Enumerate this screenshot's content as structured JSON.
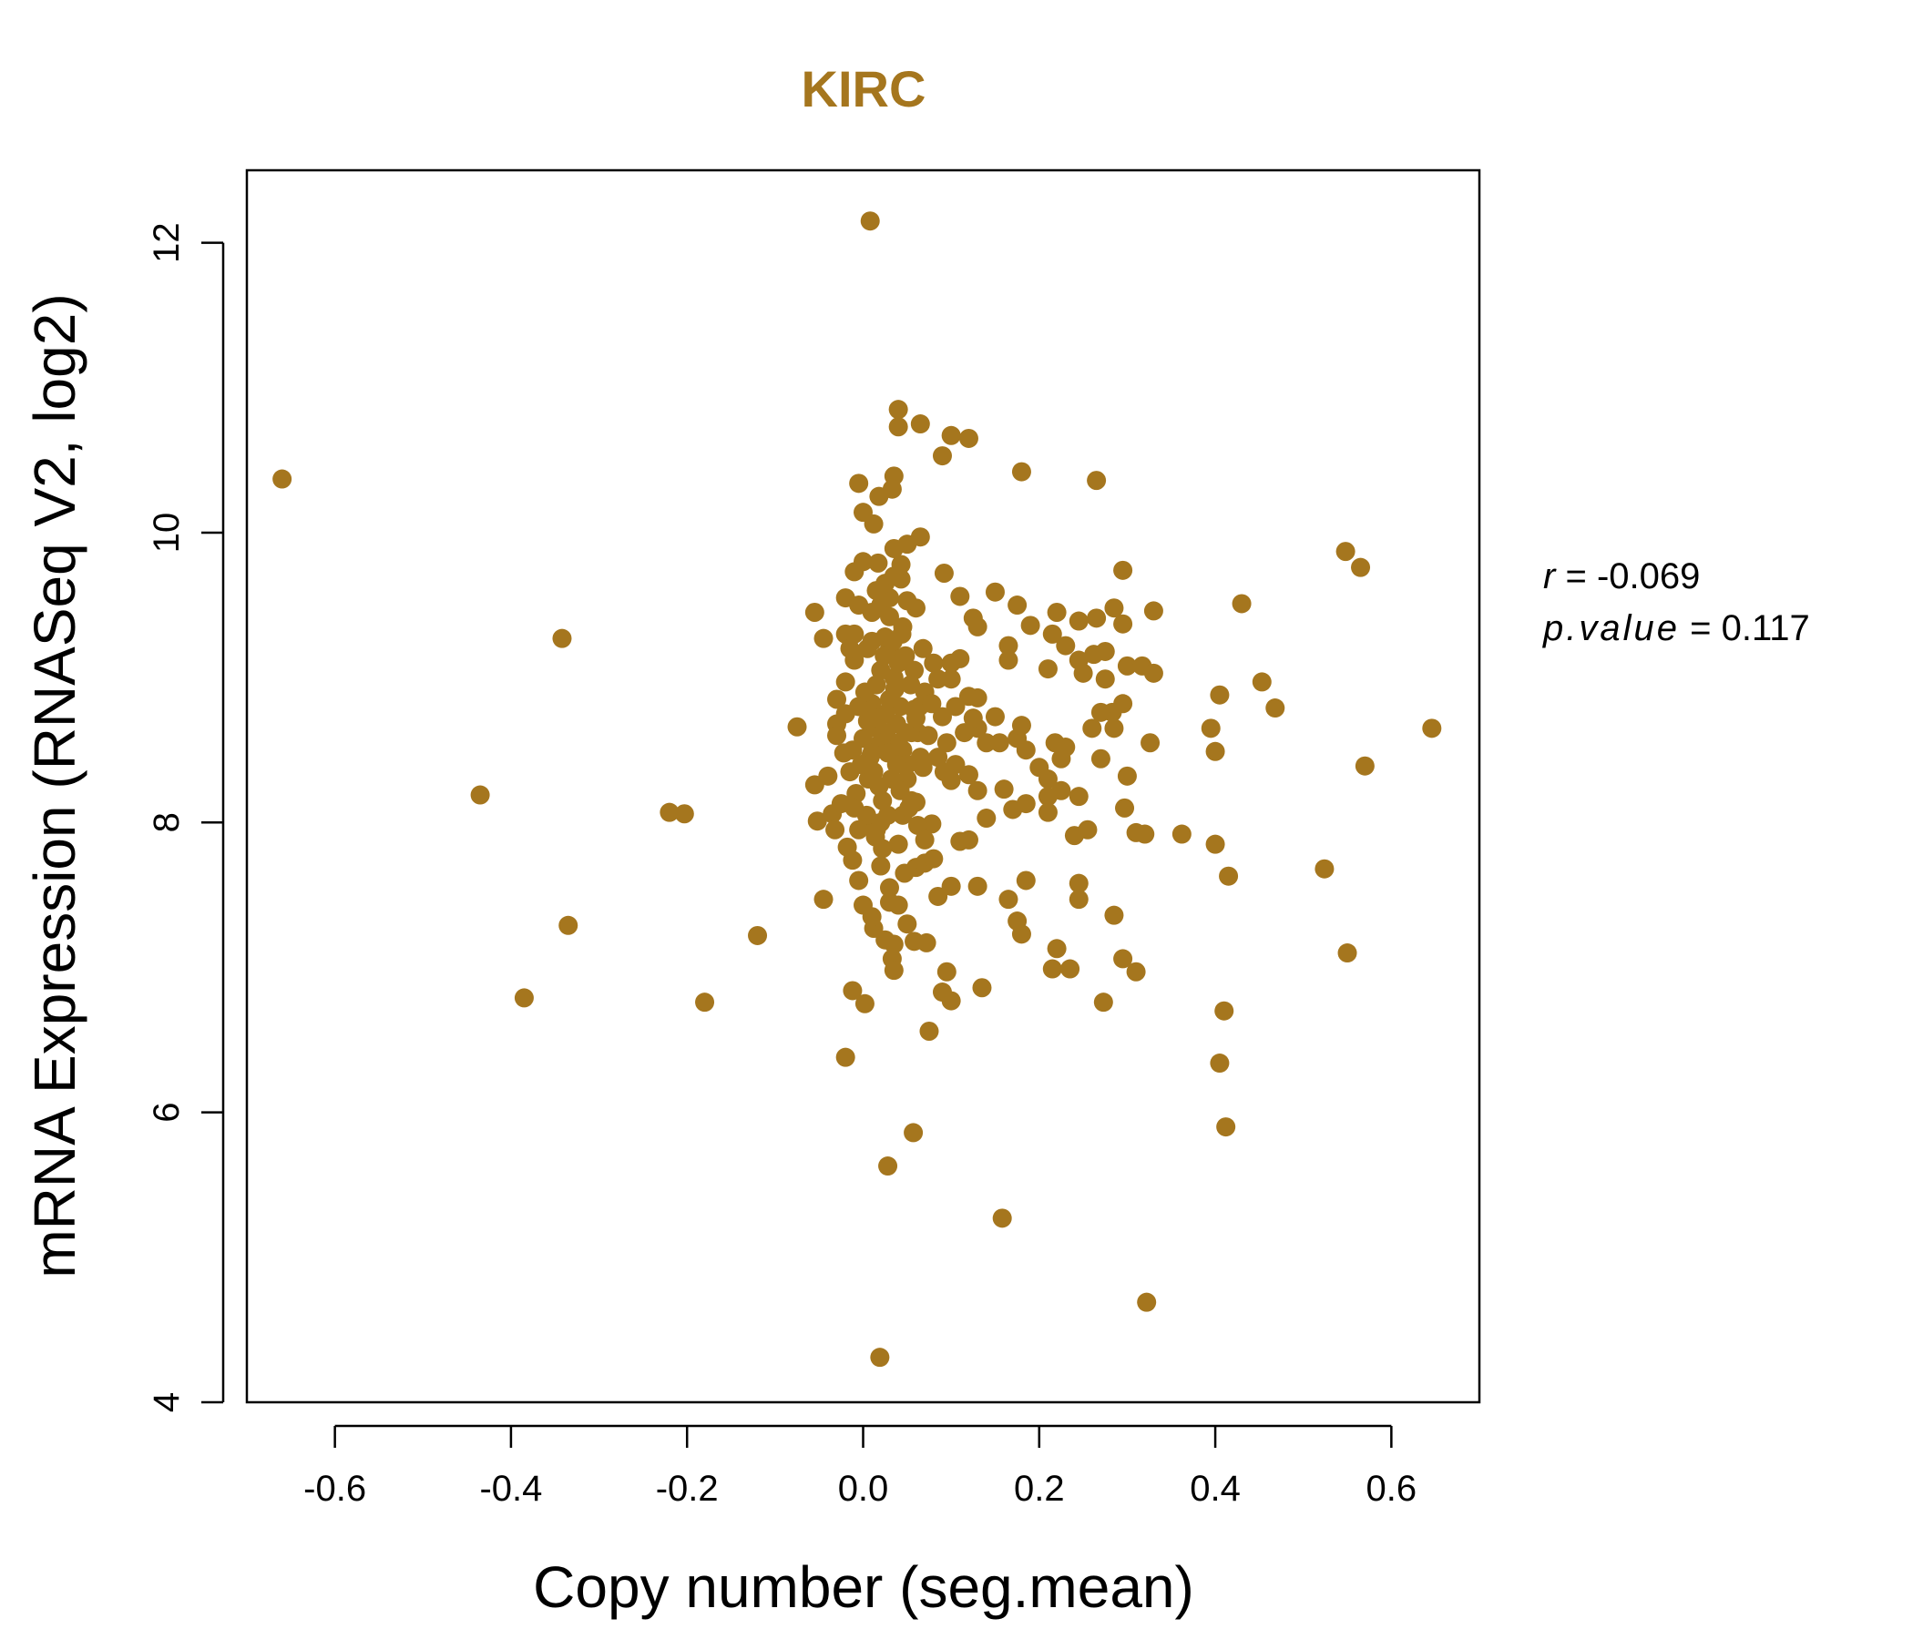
{
  "colors": {
    "accent": "#A5761E",
    "axis": "#000000"
  },
  "chart_data": {
    "type": "scatter",
    "title": "KIRC",
    "xlabel": "Copy number (seg.mean)",
    "ylabel": "mRNA Expression (RNASeq V2, log2)",
    "xlim": [
      -0.7,
      0.7
    ],
    "ylim": [
      4.0,
      12.5
    ],
    "x_ticks": [
      -0.6,
      -0.4,
      -0.2,
      0.0,
      0.2,
      0.4,
      0.6
    ],
    "x_tick_labels": [
      "-0.6",
      "-0.4",
      "-0.2",
      "0.0",
      "0.2",
      "0.4",
      "0.6"
    ],
    "y_ticks": [
      4,
      6,
      8,
      10,
      12
    ],
    "y_tick_labels": [
      "4",
      "6",
      "8",
      "10",
      "12"
    ],
    "grid": false,
    "stats": {
      "r_label": "r",
      "r_value": "-0.069",
      "p_label": "p.value",
      "p_value": "0.117"
    },
    "points": [
      [
        0.008,
        12.15
      ],
      [
        -0.66,
        10.37
      ],
      [
        0.04,
        10.85
      ],
      [
        0.065,
        10.75
      ],
      [
        0.04,
        10.73
      ],
      [
        0.1,
        10.67
      ],
      [
        0.12,
        10.65
      ],
      [
        0.09,
        10.53
      ],
      [
        0.18,
        10.42
      ],
      [
        0.265,
        10.36
      ],
      [
        0.035,
        10.39
      ],
      [
        -0.005,
        10.34
      ],
      [
        0.033,
        10.3
      ],
      [
        0.018,
        10.25
      ],
      [
        0.0,
        10.14
      ],
      [
        0.012,
        10.06
      ],
      [
        0.065,
        9.97
      ],
      [
        0.05,
        9.92
      ],
      [
        0.035,
        9.89
      ],
      [
        0.0,
        9.8
      ],
      [
        0.017,
        9.79
      ],
      [
        -0.01,
        9.73
      ],
      [
        0.043,
        9.68
      ],
      [
        0.092,
        9.72
      ],
      [
        0.295,
        9.74
      ],
      [
        0.548,
        9.87
      ],
      [
        0.565,
        9.76
      ],
      [
        0.43,
        9.51
      ],
      [
        0.33,
        9.46
      ],
      [
        0.285,
        9.48
      ],
      [
        0.265,
        9.41
      ],
      [
        0.245,
        9.39
      ],
      [
        0.22,
        9.45
      ],
      [
        0.175,
        9.5
      ],
      [
        0.15,
        9.59
      ],
      [
        0.11,
        9.56
      ],
      [
        0.125,
        9.41
      ],
      [
        0.13,
        9.35
      ],
      [
        0.06,
        9.48
      ],
      [
        0.05,
        9.53
      ],
      [
        -0.055,
        9.45
      ],
      [
        -0.02,
        9.55
      ],
      [
        -0.005,
        9.5
      ],
      [
        -0.045,
        9.27
      ],
      [
        -0.02,
        9.3
      ],
      [
        0.01,
        9.25
      ],
      [
        0.03,
        9.2
      ],
      [
        -0.342,
        9.27
      ],
      [
        0.295,
        9.37
      ],
      [
        0.275,
        9.18
      ],
      [
        0.262,
        9.16
      ],
      [
        0.245,
        9.12
      ],
      [
        0.23,
        9.22
      ],
      [
        0.215,
        9.3
      ],
      [
        0.19,
        9.36
      ],
      [
        0.165,
        9.22
      ],
      [
        0.165,
        9.12
      ],
      [
        0.21,
        9.06
      ],
      [
        0.25,
        9.03
      ],
      [
        0.275,
        8.99
      ],
      [
        0.3,
        9.08
      ],
      [
        0.317,
        9.08
      ],
      [
        0.33,
        9.03
      ],
      [
        0.453,
        8.97
      ],
      [
        0.405,
        8.88
      ],
      [
        0.468,
        8.79
      ],
      [
        0.295,
        8.82
      ],
      [
        0.283,
        8.76
      ],
      [
        0.27,
        8.76
      ],
      [
        0.26,
        8.65
      ],
      [
        0.285,
        8.65
      ],
      [
        0.395,
        8.65
      ],
      [
        0.4,
        8.49
      ],
      [
        0.326,
        8.55
      ],
      [
        0.646,
        8.65
      ],
      [
        0.57,
        8.39
      ],
      [
        0.3,
        8.32
      ],
      [
        0.27,
        8.44
      ],
      [
        0.23,
        8.52
      ],
      [
        0.225,
        8.44
      ],
      [
        0.218,
        8.55
      ],
      [
        0.2,
        8.38
      ],
      [
        0.21,
        8.3
      ],
      [
        0.245,
        8.18
      ],
      [
        0.225,
        8.22
      ],
      [
        0.21,
        8.18
      ],
      [
        0.185,
        8.13
      ],
      [
        0.17,
        8.09
      ],
      [
        0.21,
        8.07
      ],
      [
        0.16,
        8.23
      ],
      [
        0.13,
        8.22
      ],
      [
        0.14,
        8.03
      ],
      [
        0.297,
        8.1
      ],
      [
        0.31,
        7.93
      ],
      [
        0.32,
        7.92
      ],
      [
        0.362,
        7.92
      ],
      [
        0.4,
        7.85
      ],
      [
        0.415,
        7.63
      ],
      [
        0.524,
        7.68
      ],
      [
        0.55,
        7.1
      ],
      [
        0.41,
        6.7
      ],
      [
        0.405,
        6.34
      ],
      [
        0.412,
        5.9
      ],
      [
        0.322,
        4.69
      ],
      [
        0.255,
        7.95
      ],
      [
        0.24,
        7.91
      ],
      [
        0.245,
        7.58
      ],
      [
        0.245,
        7.47
      ],
      [
        0.285,
        7.36
      ],
      [
        0.295,
        7.06
      ],
      [
        0.31,
        6.97
      ],
      [
        0.273,
        6.76
      ],
      [
        0.235,
        6.99
      ],
      [
        0.22,
        7.13
      ],
      [
        0.215,
        6.99
      ],
      [
        0.18,
        7.23
      ],
      [
        0.175,
        7.32
      ],
      [
        0.185,
        7.6
      ],
      [
        0.165,
        7.47
      ],
      [
        0.13,
        7.56
      ],
      [
        0.12,
        7.88
      ],
      [
        0.11,
        7.87
      ],
      [
        0.135,
        6.86
      ],
      [
        0.1,
        6.77
      ],
      [
        0.09,
        6.83
      ],
      [
        0.095,
        6.97
      ],
      [
        0.072,
        7.17
      ],
      [
        0.058,
        7.18
      ],
      [
        0.05,
        7.3
      ],
      [
        0.04,
        7.43
      ],
      [
        0.025,
        7.19
      ],
      [
        0.033,
        7.06
      ],
      [
        0.035,
        6.98
      ],
      [
        0.075,
        6.56
      ],
      [
        -0.012,
        6.84
      ],
      [
        0.002,
        6.75
      ],
      [
        -0.02,
        6.38
      ],
      [
        0.057,
        5.86
      ],
      [
        0.028,
        5.63
      ],
      [
        0.158,
        5.27
      ],
      [
        0.019,
        4.31
      ],
      [
        -0.12,
        7.22
      ],
      [
        -0.18,
        6.76
      ],
      [
        -0.335,
        7.29
      ],
      [
        -0.385,
        6.79
      ],
      [
        -0.435,
        8.19
      ],
      [
        -0.22,
        8.07
      ],
      [
        -0.203,
        8.06
      ],
      [
        -0.075,
        8.66
      ],
      [
        -0.055,
        8.26
      ],
      [
        -0.052,
        8.01
      ],
      [
        -0.045,
        7.47
      ],
      [
        -0.04,
        8.32
      ],
      [
        -0.035,
        8.06
      ],
      [
        -0.032,
        7.95
      ],
      [
        -0.025,
        8.13
      ],
      [
        -0.018,
        7.83
      ],
      [
        -0.012,
        7.74
      ],
      [
        -0.005,
        7.6
      ],
      [
        0.0,
        7.43
      ],
      [
        0.012,
        7.27
      ],
      [
        0.035,
        7.16
      ],
      [
        0.06,
        7.69
      ],
      [
        0.07,
        7.72
      ],
      [
        0.08,
        7.75
      ],
      [
        0.085,
        7.49
      ],
      [
        0.1,
        7.56
      ],
      [
        0.078,
        7.99
      ],
      [
        0.06,
        8.14
      ],
      [
        0.1,
        8.29
      ],
      [
        0.12,
        8.33
      ],
      [
        0.14,
        8.55
      ],
      [
        0.15,
        8.73
      ],
      [
        0.175,
        8.58
      ],
      [
        0.18,
        8.67
      ],
      [
        0.185,
        8.5
      ],
      [
        0.155,
        8.55
      ],
      [
        0.13,
        8.65
      ],
      [
        0.125,
        8.72
      ],
      [
        0.12,
        8.87
      ],
      [
        0.13,
        8.86
      ],
      [
        0.1,
        8.99
      ],
      [
        0.085,
        8.99
      ],
      [
        0.09,
        8.73
      ],
      [
        0.105,
        8.8
      ],
      [
        0.11,
        9.13
      ],
      [
        0.08,
        9.1
      ],
      [
        -0.03,
        8.68
      ],
      [
        -0.03,
        8.85
      ],
      [
        -0.02,
        8.97
      ],
      [
        -0.02,
        8.75
      ],
      [
        -0.012,
        8.5
      ],
      [
        -0.015,
        8.35
      ],
      [
        -0.022,
        8.48
      ],
      [
        -0.01,
        9.12
      ],
      [
        -0.015,
        9.2
      ],
      [
        -0.03,
        8.6
      ],
      [
        0.01,
        8.0
      ],
      [
        0.015,
        7.95
      ],
      [
        0.02,
        7.7
      ],
      [
        0.03,
        7.55
      ],
      [
        0.04,
        7.85
      ],
      [
        0.045,
        8.05
      ],
      [
        0.05,
        8.3
      ],
      [
        0.055,
        8.15
      ],
      [
        0.065,
        8.45
      ],
      [
        0.068,
        8.38
      ],
      [
        0.062,
        8.62
      ],
      [
        0.07,
        8.9
      ],
      [
        0.058,
        9.05
      ],
      [
        0.048,
        9.15
      ],
      [
        0.045,
        9.35
      ],
      [
        0.03,
        9.42
      ],
      [
        0.025,
        9.28
      ],
      [
        0.02,
        9.05
      ],
      [
        0.015,
        8.95
      ],
      [
        0.01,
        8.82
      ],
      [
        0.005,
        8.7
      ],
      [
        0.0,
        8.58
      ],
      [
        0.008,
        8.45
      ],
      [
        0.012,
        8.35
      ],
      [
        0.018,
        8.25
      ],
      [
        0.022,
        8.15
      ],
      [
        0.028,
        8.05
      ],
      [
        0.033,
        8.55
      ],
      [
        0.038,
        8.68
      ],
      [
        0.042,
        8.8
      ],
      [
        0.036,
        8.92
      ],
      [
        0.026,
        8.62
      ],
      [
        0.016,
        8.52
      ],
      [
        0.006,
        8.3
      ],
      [
        0.002,
        8.9
      ],
      [
        -0.005,
        8.8
      ],
      [
        0.01,
        9.45
      ],
      [
        0.02,
        9.5
      ],
      [
        0.03,
        9.55
      ],
      [
        0.035,
        9.0
      ],
      [
        0.04,
        9.1
      ],
      [
        0.045,
        8.5
      ],
      [
        0.05,
        8.4
      ],
      [
        0.055,
        8.62
      ],
      [
        0.06,
        8.72
      ],
      [
        0.025,
        8.75
      ],
      [
        0.03,
        8.85
      ],
      [
        0.015,
        8.65
      ],
      [
        0.02,
        8.55
      ],
      [
        0.01,
        8.48
      ],
      [
        -0.002,
        8.4
      ],
      [
        0.032,
        8.3
      ],
      [
        0.042,
        8.22
      ],
      [
        0.052,
        8.1
      ],
      [
        0.062,
        7.98
      ],
      [
        0.07,
        7.88
      ],
      [
        0.014,
        7.9
      ],
      [
        0.004,
        8.05
      ],
      [
        -0.008,
        8.2
      ],
      [
        0.024,
        9.15
      ],
      [
        0.034,
        9.25
      ],
      [
        0.044,
        9.3
      ],
      [
        0.054,
        8.95
      ],
      [
        0.064,
        8.8
      ],
      [
        0.074,
        8.6
      ],
      [
        0.085,
        8.45
      ],
      [
        0.095,
        8.55
      ],
      [
        0.105,
        8.4
      ],
      [
        0.115,
        8.62
      ],
      [
        0.092,
        8.35
      ],
      [
        0.1,
        9.1
      ],
      [
        0.015,
        9.6
      ],
      [
        0.025,
        9.65
      ],
      [
        -0.01,
        9.3
      ],
      [
        0.005,
        9.2
      ],
      [
        -0.01,
        8.1
      ],
      [
        0.022,
        7.82
      ],
      [
        0.03,
        7.45
      ],
      [
        0.047,
        7.65
      ],
      [
        0.01,
        7.35
      ],
      [
        -0.005,
        7.95
      ],
      [
        0.02,
        8.0
      ],
      [
        0.028,
        8.48
      ],
      [
        0.018,
        8.72
      ],
      [
        0.038,
        8.4
      ],
      [
        0.048,
        8.62
      ],
      [
        0.058,
        8.78
      ],
      [
        0.068,
        9.2
      ],
      [
        0.078,
        8.82
      ],
      [
        0.035,
        9.7
      ],
      [
        0.043,
        9.78
      ]
    ]
  }
}
